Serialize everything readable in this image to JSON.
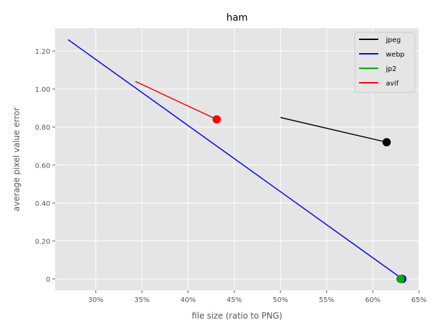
{
  "chart_data": {
    "type": "line",
    "title": "ham",
    "xlabel": "file size (ratio to PNG)",
    "ylabel": "average pixel value error",
    "xlim": [
      25.6,
      65
    ],
    "ylim": [
      -0.06,
      1.32
    ],
    "xticks": [
      30,
      35,
      40,
      45,
      50,
      55,
      60,
      65
    ],
    "xtick_labels": [
      "30%",
      "35%",
      "40%",
      "45%",
      "50%",
      "55%",
      "60%",
      "65%"
    ],
    "yticks": [
      0,
      0.2,
      0.4,
      0.6,
      0.8,
      1.0,
      1.2
    ],
    "ytick_labels": [
      "0",
      "0.20",
      "0.40",
      "0.60",
      "0.80",
      "1.00",
      "1.20"
    ],
    "grid": true,
    "legend_position": "top-right",
    "series": [
      {
        "name": "jpeg",
        "color": "#000000",
        "x": [
          50.0,
          61.5
        ],
        "y": [
          0.85,
          0.72
        ],
        "marker": {
          "x": 61.5,
          "y": 0.72
        }
      },
      {
        "name": "webp",
        "color": "#0000ff",
        "x": [
          27.0,
          63.2
        ],
        "y": [
          1.26,
          0.0
        ],
        "marker": {
          "x": 63.2,
          "y": 0.0
        }
      },
      {
        "name": "jp2",
        "color": "#00aa00",
        "x": [
          63.0,
          63.0
        ],
        "y": [
          0.0,
          0.0
        ],
        "marker": {
          "x": 63.0,
          "y": 0.0
        }
      },
      {
        "name": "avif",
        "color": "#ff0000",
        "x": [
          34.3,
          43.1
        ],
        "y": [
          1.04,
          0.84
        ],
        "marker": {
          "x": 43.1,
          "y": 0.84
        }
      }
    ]
  }
}
